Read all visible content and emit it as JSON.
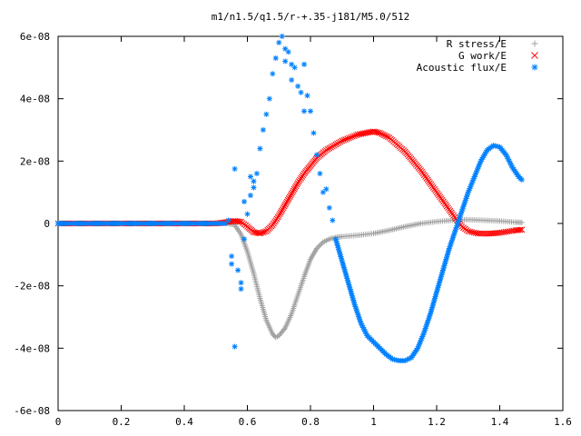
{
  "chart_data": {
    "type": "scatter",
    "title": "m1/n1.5/q1.5/r-+.35-j181/M5.0/512",
    "xlabel": "",
    "ylabel": "",
    "xlim": [
      0,
      1.6
    ],
    "ylim": [
      -6e-08,
      6e-08
    ],
    "xticks": [
      0,
      0.2,
      0.4,
      0.6,
      0.8,
      1,
      1.2,
      1.4,
      1.6
    ],
    "xtick_labels": [
      "0",
      "0.2",
      "0.4",
      "0.6",
      "0.8",
      "1",
      "1.2",
      "1.4",
      "1.6"
    ],
    "yticks": [
      -6e-08,
      -4e-08,
      -2e-08,
      0,
      2e-08,
      4e-08,
      6e-08
    ],
    "ytick_labels": [
      "-6e-08",
      "-4e-08",
      "-2e-08",
      "0",
      "2e-08",
      "4e-08",
      "6e-08"
    ],
    "grid": false,
    "legend_position": "top-right",
    "series": [
      {
        "name": "R stress/E",
        "marker": "plus",
        "color": "#a0a0a0",
        "x": [
          0.0,
          0.1,
          0.2,
          0.3,
          0.4,
          0.5,
          0.54,
          0.56,
          0.58,
          0.6,
          0.62,
          0.64,
          0.66,
          0.68,
          0.69,
          0.7,
          0.72,
          0.74,
          0.76,
          0.78,
          0.8,
          0.82,
          0.84,
          0.86,
          0.88,
          0.9,
          0.95,
          1.0,
          1.05,
          1.1,
          1.15,
          1.2,
          1.25,
          1.3,
          1.35,
          1.4,
          1.45,
          1.47
        ],
        "y": [
          0,
          0,
          0,
          0,
          0,
          0,
          0,
          -5e-10,
          -3.5e-09,
          -9e-09,
          -1.6e-08,
          -2.4e-08,
          -3.1e-08,
          -3.55e-08,
          -3.65e-08,
          -3.6e-08,
          -3.35e-08,
          -2.9e-08,
          -2.3e-08,
          -1.7e-08,
          -1.15e-08,
          -8e-09,
          -6e-09,
          -5e-09,
          -4.5e-09,
          -4.2e-09,
          -3.8e-09,
          -3.2e-09,
          -2.2e-09,
          -1e-09,
          0,
          6e-10,
          1e-09,
          1.2e-09,
          1e-09,
          8e-10,
          4e-10,
          3e-10
        ]
      },
      {
        "name": "G work/E",
        "marker": "cross",
        "color": "#ff0000",
        "x": [
          0.0,
          0.1,
          0.2,
          0.3,
          0.4,
          0.5,
          0.54,
          0.56,
          0.58,
          0.6,
          0.62,
          0.64,
          0.66,
          0.68,
          0.7,
          0.72,
          0.74,
          0.76,
          0.78,
          0.8,
          0.82,
          0.85,
          0.9,
          0.95,
          1.0,
          1.02,
          1.05,
          1.1,
          1.15,
          1.2,
          1.25,
          1.28,
          1.3,
          1.33,
          1.36,
          1.4,
          1.45,
          1.47
        ],
        "y": [
          0,
          0,
          0,
          0,
          0,
          0,
          5e-10,
          8e-10,
          5e-10,
          -1e-09,
          -2.8e-09,
          -3.2e-09,
          -2.5e-09,
          -5e-10,
          2.5e-09,
          6e-09,
          9.5e-09,
          1.3e-08,
          1.6e-08,
          1.85e-08,
          2.1e-08,
          2.35e-08,
          2.65e-08,
          2.85e-08,
          2.95e-08,
          2.9e-08,
          2.75e-08,
          2.3e-08,
          1.7e-08,
          1e-08,
          3e-09,
          -1e-09,
          -2.5e-09,
          -3.2e-09,
          -3.3e-09,
          -3e-09,
          -2.2e-09,
          -2e-09
        ]
      },
      {
        "name": "Acoustic flux/E",
        "marker": "asterisk",
        "color": "#0080ff",
        "x": [
          0.0,
          0.05,
          0.1,
          0.15,
          0.2,
          0.25,
          0.3,
          0.35,
          0.4,
          0.45,
          0.5,
          0.53,
          0.54,
          0.55,
          0.55,
          0.56,
          0.56,
          0.57,
          0.58,
          0.58,
          0.59,
          0.59,
          0.6,
          0.61,
          0.61,
          0.62,
          0.62,
          0.63,
          0.64,
          0.65,
          0.66,
          0.67,
          0.68,
          0.69,
          0.7,
          0.71,
          0.72,
          0.72,
          0.73,
          0.74,
          0.74,
          0.75,
          0.76,
          0.77,
          0.78,
          0.78,
          0.79,
          0.8,
          0.81,
          0.82,
          0.83,
          0.84,
          0.85,
          0.86,
          0.87,
          0.88,
          0.9,
          0.92,
          0.94,
          0.96,
          0.98,
          1.0,
          1.02,
          1.04,
          1.06,
          1.08,
          1.1,
          1.12,
          1.14,
          1.16,
          1.18,
          1.2,
          1.22,
          1.24,
          1.26,
          1.28,
          1.3,
          1.32,
          1.34,
          1.36,
          1.38,
          1.4,
          1.42,
          1.44,
          1.46,
          1.47
        ],
        "y": [
          0,
          0,
          0,
          0,
          0,
          0,
          0,
          0,
          0,
          0,
          0,
          0,
          1e-09,
          -1.3e-08,
          -1.05e-08,
          1.75e-08,
          -3.95e-08,
          -1.5e-08,
          -1.9e-08,
          -2.1e-08,
          7e-09,
          -5e-09,
          3e-09,
          9e-09,
          1.5e-08,
          1.35e-08,
          1.15e-08,
          1.6e-08,
          2.4e-08,
          3e-08,
          3.5e-08,
          4e-08,
          4.8e-08,
          5.3e-08,
          5.8e-08,
          6e-08,
          5.6e-08,
          5.2e-08,
          5.5e-08,
          5.1e-08,
          4.6e-08,
          5e-08,
          4.4e-08,
          4.2e-08,
          5.1e-08,
          3.6e-08,
          4.1e-08,
          3.6e-08,
          2.9e-08,
          2.2e-08,
          1.6e-08,
          1e-08,
          1.1e-08,
          5e-09,
          1e-09,
          -5e-09,
          -1.2e-08,
          -1.9e-08,
          -2.6e-08,
          -3.2e-08,
          -3.6e-08,
          -3.8e-08,
          -4e-08,
          -4.2e-08,
          -4.35e-08,
          -4.4e-08,
          -4.4e-08,
          -4.3e-08,
          -4e-08,
          -3.5e-08,
          -2.9e-08,
          -2.2e-08,
          -1.5e-08,
          -8e-09,
          -2e-09,
          4e-09,
          1e-08,
          1.5e-08,
          2e-08,
          2.35e-08,
          2.5e-08,
          2.45e-08,
          2.2e-08,
          1.8e-08,
          1.5e-08,
          1.4e-08
        ]
      }
    ]
  }
}
